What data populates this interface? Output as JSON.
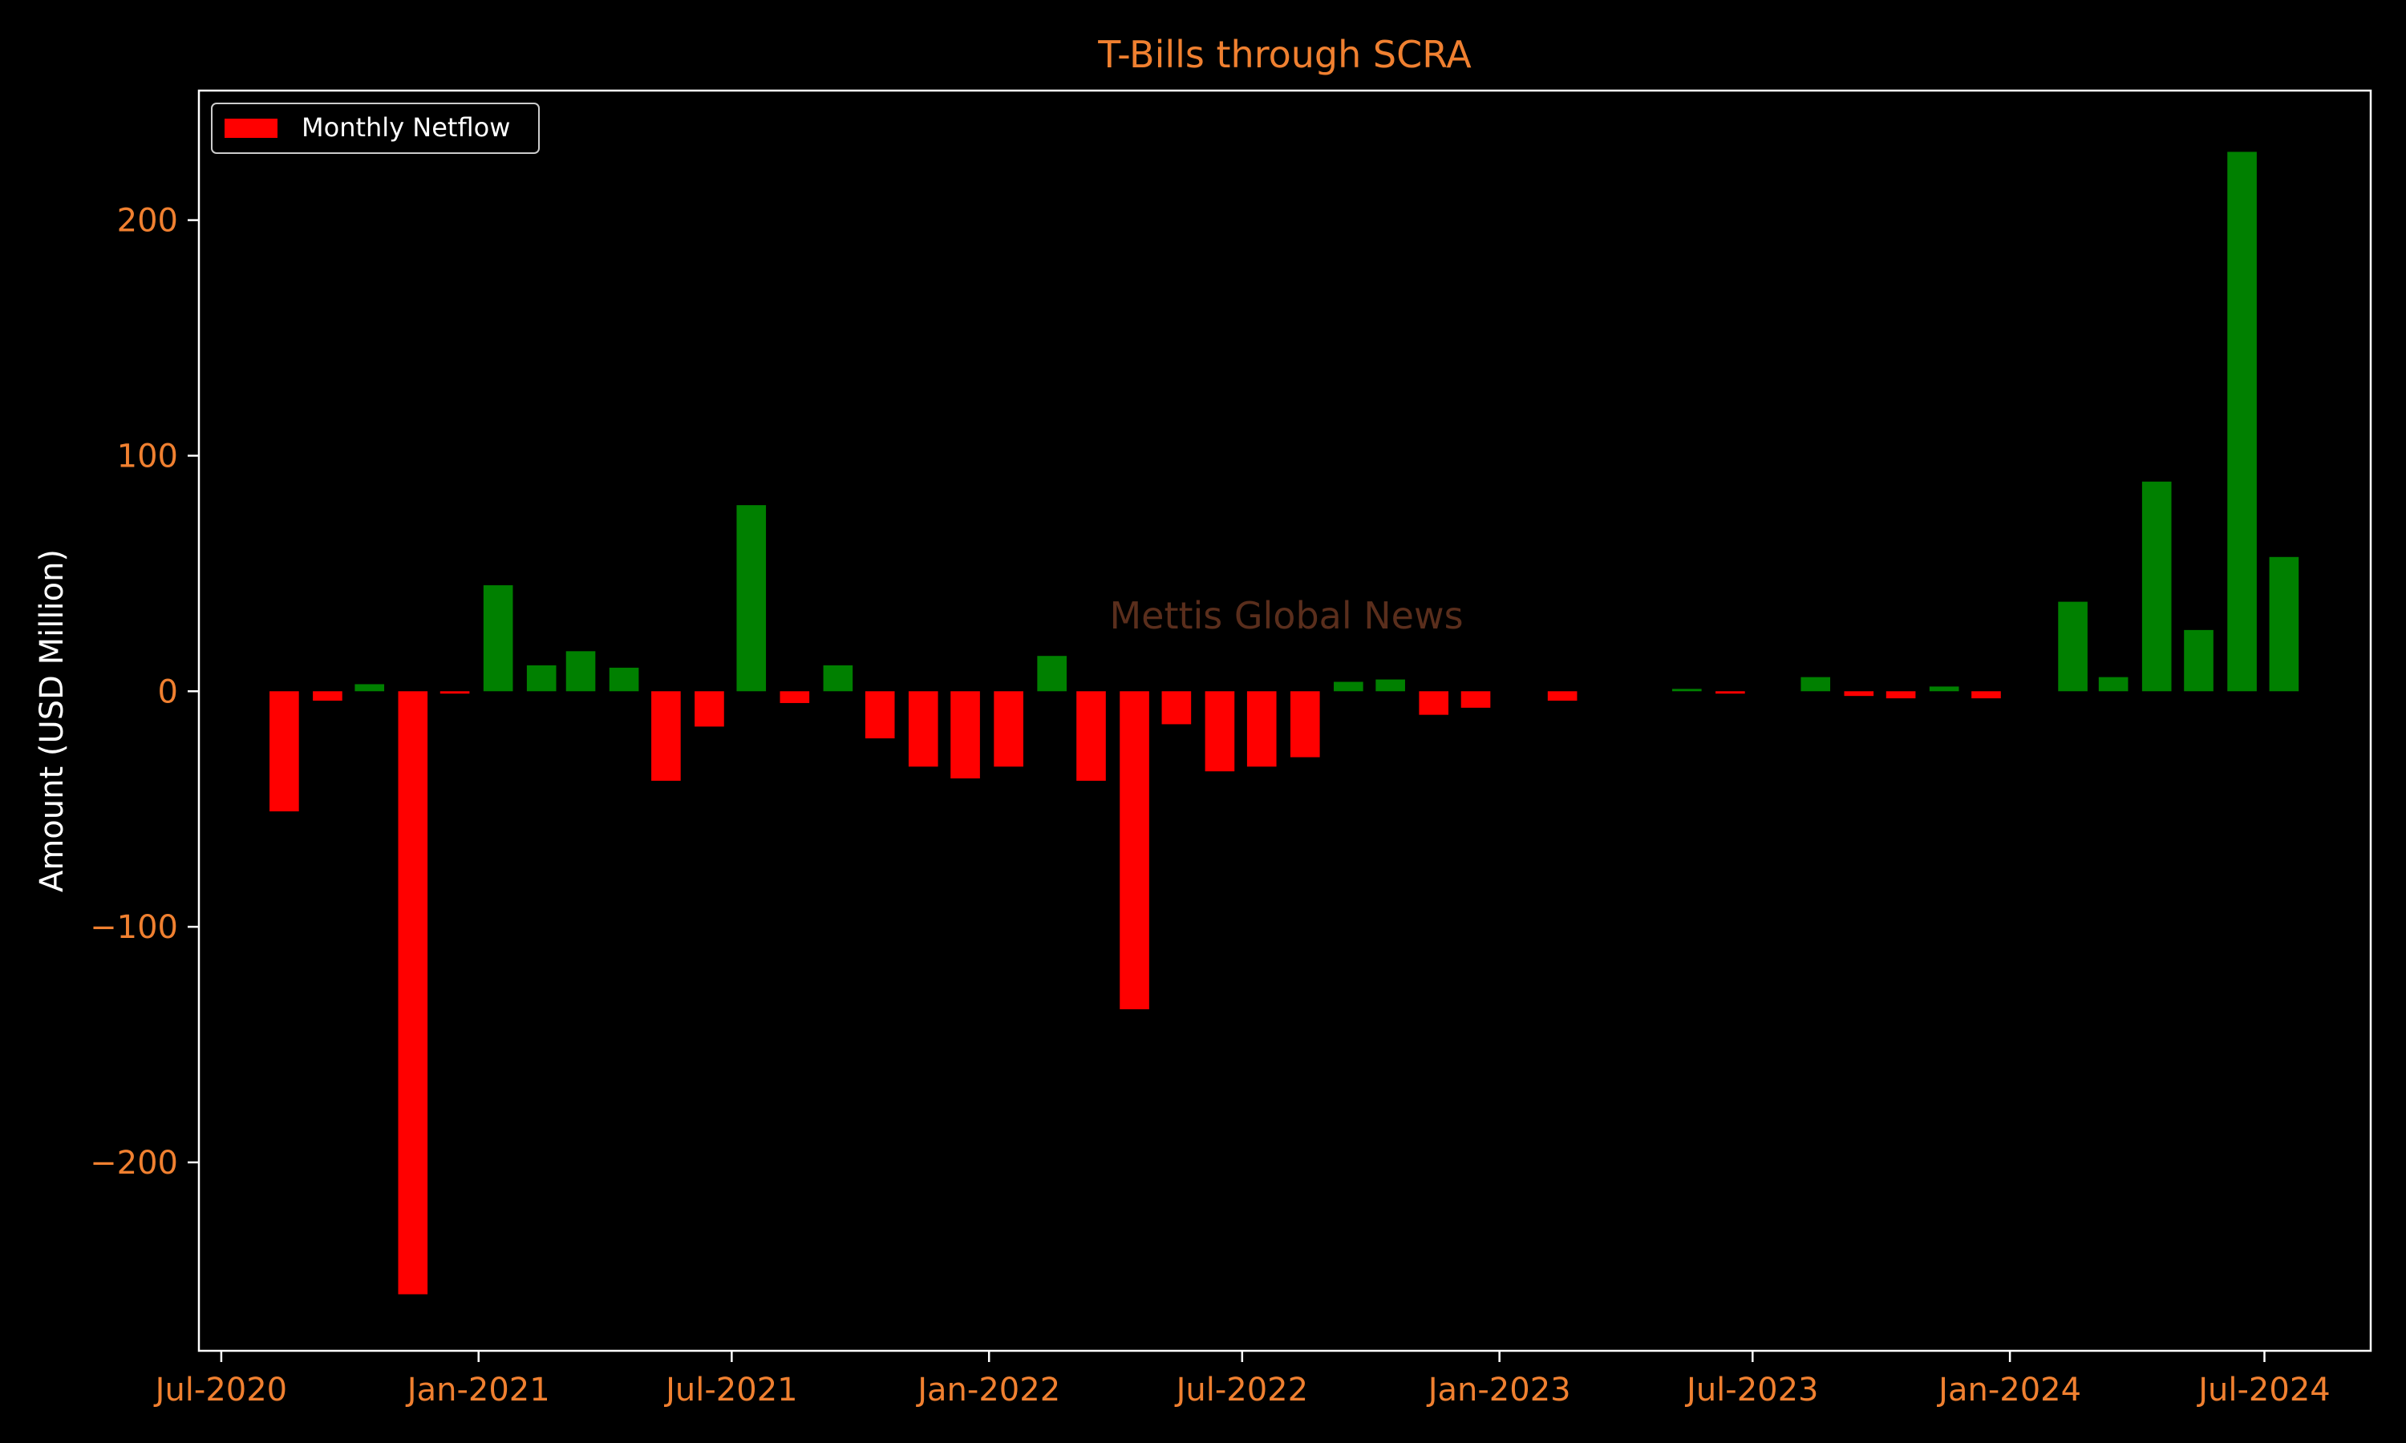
{
  "chart_data": {
    "type": "bar",
    "title": "T-Bills through SCRA",
    "xlabel": "",
    "ylabel": "Amount (USD Million)",
    "ylim": [
      -280,
      255
    ],
    "xlim": [
      "2020-06-15",
      "2024-09-15"
    ],
    "yticks": [
      -200,
      -100,
      0,
      100,
      200
    ],
    "ytick_labels": [
      "−200",
      "−100",
      "0",
      "100",
      "200"
    ],
    "xticks": [
      "2020-07-01",
      "2021-01-01",
      "2021-07-01",
      "2022-01-01",
      "2022-07-01",
      "2023-01-01",
      "2023-07-01",
      "2024-01-01",
      "2024-07-01"
    ],
    "xtick_labels": [
      "Jul-2020",
      "Jan-2021",
      "Jul-2021",
      "Jan-2022",
      "Jul-2022",
      "Jan-2023",
      "Jul-2023",
      "Jan-2024",
      "Jul-2024"
    ],
    "legend": {
      "label": "Monthly Netflow",
      "position": "upper-left"
    },
    "watermark": "Mettis Global News",
    "grid": false,
    "colors": {
      "positive": "#008000",
      "negative": "#ff0000",
      "background": "#000000",
      "axes": "#ffffff",
      "title": "#f08030",
      "ticks": "#f08030",
      "ylabel": "#ffffff",
      "watermark": "#5a2e1c"
    },
    "series": [
      {
        "name": "Monthly Netflow",
        "x": [
          "2020-08-01",
          "2020-09-01",
          "2020-10-01",
          "2020-11-01",
          "2020-12-01",
          "2021-01-01",
          "2021-02-01",
          "2021-03-01",
          "2021-04-01",
          "2021-05-01",
          "2021-06-01",
          "2021-07-01",
          "2021-08-01",
          "2021-09-01",
          "2021-10-01",
          "2021-11-01",
          "2021-12-01",
          "2022-01-01",
          "2022-02-01",
          "2022-03-01",
          "2022-04-01",
          "2022-05-01",
          "2022-06-01",
          "2022-07-01",
          "2022-08-01",
          "2022-09-01",
          "2022-10-01",
          "2022-11-01",
          "2022-12-01",
          "2023-01-01",
          "2023-02-01",
          "2023-03-01",
          "2023-04-01",
          "2023-05-01",
          "2023-06-01",
          "2023-07-01",
          "2023-08-01",
          "2023-09-01",
          "2023-10-01",
          "2023-11-01",
          "2023-12-01",
          "2024-01-01",
          "2024-02-01",
          "2024-03-01",
          "2024-04-01",
          "2024-05-01",
          "2024-06-01",
          "2024-07-01"
        ],
        "values": [
          -51,
          -4,
          3,
          -256,
          -1,
          45,
          11,
          17,
          10,
          -38,
          -15,
          79,
          -5,
          11,
          -20,
          -32,
          -37,
          -32,
          15,
          -38,
          -135,
          -14,
          -34,
          -32,
          -28,
          4,
          5,
          -10,
          -7,
          0,
          -4,
          0,
          0,
          1,
          -1,
          0,
          6,
          -2,
          -3,
          2,
          -3,
          0,
          38,
          6,
          89,
          26,
          229,
          57
        ]
      }
    ]
  }
}
